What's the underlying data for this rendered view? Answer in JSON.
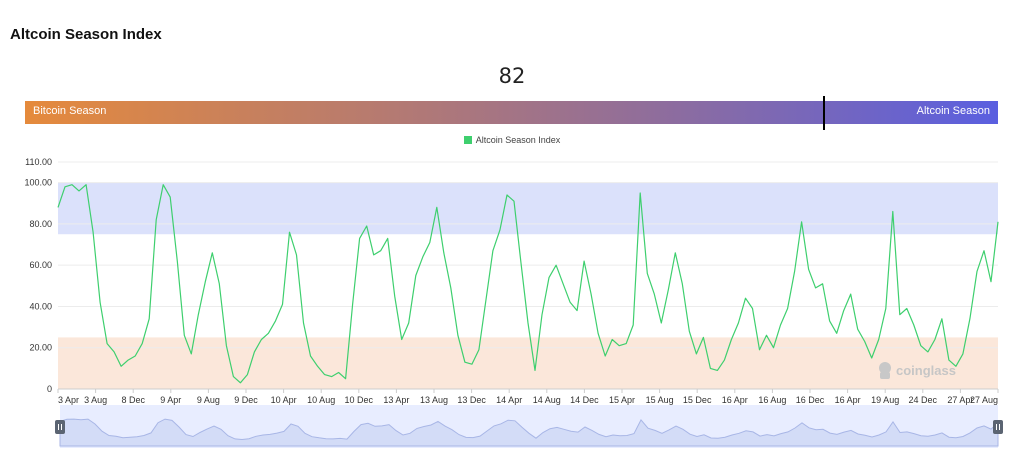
{
  "page": {
    "title": "Altcoin Season Index"
  },
  "gauge": {
    "current_value": "82",
    "value_fraction": 0.82,
    "left_label": "Bitcoin Season",
    "right_label": "Altcoin Season"
  },
  "legend": {
    "label": "Altcoin Season Index"
  },
  "watermark": {
    "text": "coinglass"
  },
  "colors": {
    "line": "#3ecf6e",
    "altcoin_zone": "#dbe1fb",
    "bitcoin_zone": "#fbe7da",
    "gauge_start": "#e58a3c",
    "gauge_end": "#5a5fe0",
    "navigator": "#e8edff"
  },
  "chart_data": {
    "type": "line",
    "title": "",
    "xlabel": "",
    "ylabel": "",
    "ylim": [
      0,
      110
    ],
    "y_ticks": [
      "0",
      "20.00",
      "40.00",
      "60.00",
      "80.00",
      "100.00",
      "110.00"
    ],
    "x_ticks": [
      "3 Apr",
      "3 Aug",
      "8 Dec",
      "9 Apr",
      "9 Aug",
      "9 Dec",
      "10 Apr",
      "10 Aug",
      "10 Dec",
      "13 Apr",
      "13 Aug",
      "13 Dec",
      "14 Apr",
      "14 Aug",
      "14 Dec",
      "15 Apr",
      "15 Aug",
      "15 Dec",
      "16 Apr",
      "16 Aug",
      "16 Dec",
      "16 Apr",
      "19 Aug",
      "24 Dec",
      "27 Apr",
      "27 Aug"
    ],
    "bands": [
      {
        "label": "Altcoin Season zone",
        "from": 75,
        "to": 100
      },
      {
        "label": "Bitcoin Season zone",
        "from": 0,
        "to": 25
      }
    ],
    "series": [
      {
        "name": "Altcoin Season Index",
        "values": [
          88,
          98,
          99,
          96,
          99,
          76,
          42,
          22,
          18,
          11,
          14,
          16,
          22,
          34,
          82,
          99,
          93,
          62,
          26,
          17,
          36,
          52,
          66,
          51,
          21,
          6,
          3,
          7,
          18,
          24,
          27,
          33,
          41,
          76,
          65,
          32,
          16,
          11,
          7,
          6,
          8,
          5,
          41,
          73,
          79,
          65,
          67,
          73,
          45,
          24,
          32,
          55,
          64,
          71,
          88,
          66,
          49,
          26,
          13,
          12,
          19,
          43,
          67,
          77,
          94,
          91,
          61,
          32,
          9,
          36,
          54,
          60,
          51,
          42,
          38,
          62,
          46,
          27,
          16,
          24,
          21,
          22,
          31,
          95,
          56,
          46,
          32,
          48,
          66,
          51,
          28,
          17,
          25,
          10,
          9,
          14,
          24,
          32,
          44,
          39,
          19,
          26,
          20,
          31,
          39,
          57,
          81,
          58,
          49,
          51,
          33,
          27,
          38,
          46,
          29,
          23,
          15,
          24,
          39,
          86,
          36,
          39,
          31,
          21,
          18,
          24,
          34,
          14,
          11,
          17,
          34,
          57,
          67,
          52,
          81
        ]
      }
    ]
  }
}
